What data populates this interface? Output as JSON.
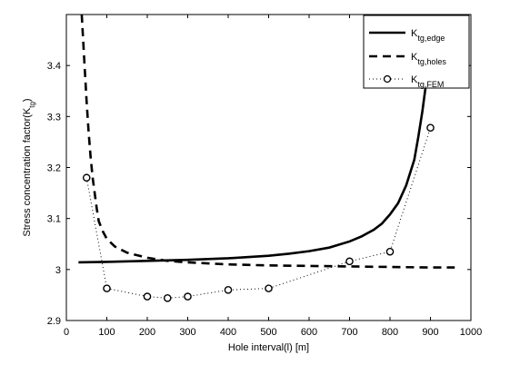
{
  "chart_data": {
    "type": "line",
    "title": "",
    "xlabel": "Hole interval(l) [m]",
    "ylabel": "Stress concentration factor(K",
    "ylabel_sub": "tg",
    "ylabel_end": ")",
    "xlim": [
      0,
      1000
    ],
    "ylim": [
      2.9,
      3.5
    ],
    "xticks": [
      0,
      100,
      200,
      300,
      400,
      500,
      600,
      700,
      800,
      900,
      1000
    ],
    "yticks": [
      2.9,
      3.0,
      3.1,
      3.2,
      3.3,
      3.4
    ],
    "ytick_labels": [
      "2.9",
      "3",
      "3.1",
      "3.2",
      "3.3",
      "3.4"
    ],
    "grid": false,
    "legend_position": "top-right",
    "series": [
      {
        "name": "K",
        "name_sub": "tg,edge",
        "style": "solid",
        "x": [
          30,
          100,
          200,
          300,
          400,
          500,
          550,
          600,
          650,
          700,
          730,
          760,
          780,
          800,
          820,
          840,
          860,
          870,
          880,
          890,
          900,
          910,
          915
        ],
        "y": [
          3.014,
          3.015,
          3.017,
          3.019,
          3.022,
          3.027,
          3.031,
          3.036,
          3.043,
          3.055,
          3.065,
          3.078,
          3.09,
          3.108,
          3.13,
          3.165,
          3.215,
          3.26,
          3.31,
          3.37,
          3.44,
          3.495,
          3.52
        ]
      },
      {
        "name": "K",
        "name_sub": "tg,holes",
        "style": "dashed",
        "x": [
          38,
          45,
          50,
          55,
          60,
          65,
          70,
          75,
          80,
          90,
          100,
          120,
          150,
          200,
          250,
          300,
          400,
          500,
          600,
          700,
          800,
          900,
          960
        ],
        "y": [
          3.5,
          3.4,
          3.33,
          3.27,
          3.22,
          3.18,
          3.15,
          3.12,
          3.095,
          3.075,
          3.06,
          3.045,
          3.033,
          3.023,
          3.017,
          3.014,
          3.01,
          3.008,
          3.007,
          3.006,
          3.005,
          3.004,
          3.004
        ]
      },
      {
        "name": "K",
        "name_sub": "tg,FEM",
        "style": "dotted-circle",
        "x": [
          50,
          100,
          200,
          250,
          300,
          400,
          500,
          700,
          800,
          900
        ],
        "y": [
          3.18,
          2.963,
          2.947,
          2.944,
          2.947,
          2.96,
          2.963,
          3.016,
          3.035,
          3.278
        ]
      }
    ]
  }
}
